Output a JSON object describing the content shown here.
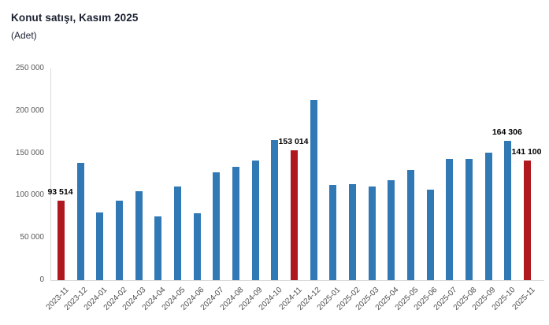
{
  "title": "Konut satışı, Kasım 2025",
  "subtitle": "(Adet)",
  "colors": {
    "bar_blue": "#3179b5",
    "bar_red": "#ae181e",
    "axis_line": "#d9d9d9",
    "axis_text": "#595959",
    "title_text": "#1b2130",
    "data_label_text": "#000000",
    "background": "#ffffff"
  },
  "chart_data": {
    "type": "bar",
    "title": "Konut satışı, Kasım 2025",
    "ylabel": "(Adet)",
    "xlabel": "",
    "ylim": [
      0,
      250000
    ],
    "ytick_interval": 50000,
    "ytick_labels": [
      "0",
      "50 000",
      "100 000",
      "150 000",
      "200 000",
      "250 000"
    ],
    "grid": false,
    "legend": "none",
    "categories": [
      "2023-11",
      "2023-12",
      "2024-01",
      "2024-02",
      "2024-03",
      "2024-04",
      "2024-05",
      "2024-06",
      "2024-07",
      "2024-08",
      "2024-09",
      "2024-10",
      "2024-11",
      "2024-12",
      "2025-01",
      "2025-02",
      "2025-03",
      "2025-04",
      "2025-05",
      "2025-06",
      "2025-07",
      "2025-08",
      "2025-09",
      "2025-10",
      "2025-11"
    ],
    "values": [
      93514,
      138600,
      80300,
      93900,
      105400,
      75600,
      110200,
      79400,
      126900,
      134200,
      140800,
      165100,
      153014,
      212700,
      112500,
      113400,
      110600,
      118100,
      129900,
      107200,
      142900,
      143200,
      150300,
      164306,
      141100
    ],
    "highlight_indices": [
      0,
      12,
      24
    ],
    "highlight_meaning": "November months shown in red",
    "data_labels": [
      {
        "index": 0,
        "text": "93 514"
      },
      {
        "index": 12,
        "text": "153 014"
      },
      {
        "index": 23,
        "text": "164 306"
      },
      {
        "index": 24,
        "text": "141 100"
      }
    ]
  }
}
